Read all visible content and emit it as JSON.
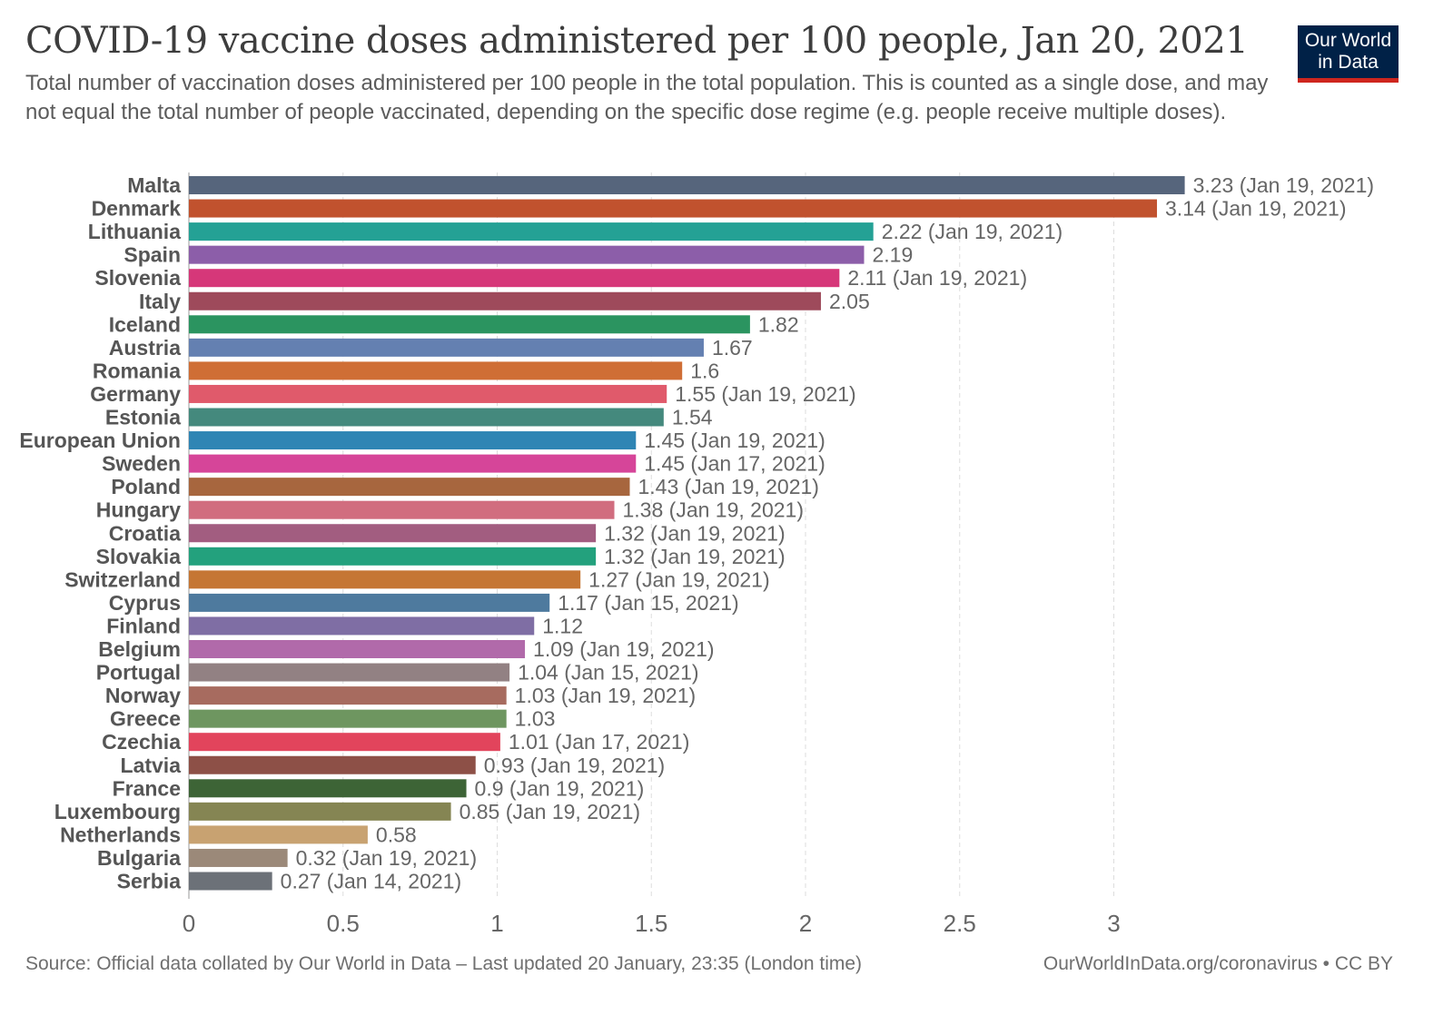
{
  "header": {
    "title": "COVID-19 vaccine doses administered per 100 people, Jan 20, 2021",
    "subtitle": "Total number of vaccination doses administered per 100 people in the total population. This is counted as a single dose, and may not equal the total number of people vaccinated, depending on the specific dose regime (e.g. people receive multiple doses)."
  },
  "logo": {
    "line1": "Our World",
    "line2": "in Data",
    "bg_color": "#002147",
    "accent_color": "#ce261e"
  },
  "footer": {
    "source": "Source: Official data collated by Our World in Data – Last updated 20 January, 23:35 (London time)",
    "license": "OurWorldInData.org/coronavirus • CC BY"
  },
  "chart_data": {
    "type": "bar",
    "orientation": "horizontal",
    "xlim": [
      0,
      3.23
    ],
    "xticks": [
      "0",
      "0.5",
      "1",
      "1.5",
      "2",
      "2.5",
      "3"
    ],
    "xtick_values": [
      0,
      0.5,
      1,
      1.5,
      2,
      2.5,
      3
    ],
    "grid": true,
    "categories": [
      "Malta",
      "Denmark",
      "Lithuania",
      "Spain",
      "Slovenia",
      "Italy",
      "Iceland",
      "Austria",
      "Romania",
      "Germany",
      "Estonia",
      "European Union",
      "Sweden",
      "Poland",
      "Hungary",
      "Croatia",
      "Slovakia",
      "Switzerland",
      "Cyprus",
      "Finland",
      "Belgium",
      "Portugal",
      "Norway",
      "Greece",
      "Czechia",
      "Latvia",
      "France",
      "Luxembourg",
      "Netherlands",
      "Bulgaria",
      "Serbia"
    ],
    "values": [
      3.23,
      3.14,
      2.22,
      2.19,
      2.11,
      2.05,
      1.82,
      1.67,
      1.6,
      1.55,
      1.54,
      1.45,
      1.45,
      1.43,
      1.38,
      1.32,
      1.32,
      1.27,
      1.17,
      1.12,
      1.09,
      1.04,
      1.03,
      1.03,
      1.01,
      0.93,
      0.9,
      0.85,
      0.58,
      0.32,
      0.27
    ],
    "labels": [
      "3.23 (Jan 19, 2021)",
      "3.14 (Jan 19, 2021)",
      "2.22 (Jan 19, 2021)",
      "2.19",
      "2.11 (Jan 19, 2021)",
      "2.05",
      "1.82",
      "1.67",
      "1.6",
      "1.55 (Jan 19, 2021)",
      "1.54",
      "1.45 (Jan 19, 2021)",
      "1.45 (Jan 17, 2021)",
      "1.43 (Jan 19, 2021)",
      "1.38 (Jan 19, 2021)",
      "1.32 (Jan 19, 2021)",
      "1.32 (Jan 19, 2021)",
      "1.27 (Jan 19, 2021)",
      "1.17 (Jan 15, 2021)",
      "1.12",
      "1.09 (Jan 19, 2021)",
      "1.04 (Jan 15, 2021)",
      "1.03 (Jan 19, 2021)",
      "1.03",
      "1.01 (Jan 17, 2021)",
      "0.93 (Jan 19, 2021)",
      "0.9 (Jan 19, 2021)",
      "0.85 (Jan 19, 2021)",
      "0.58",
      "0.32 (Jan 19, 2021)",
      "0.27 (Jan 14, 2021)"
    ],
    "colors": [
      "#56657c",
      "#c1522e",
      "#24a195",
      "#8c5ea9",
      "#d63779",
      "#9e4a5b",
      "#2b9460",
      "#6480b1",
      "#cf6e35",
      "#e05a6b",
      "#44897d",
      "#2f85b4",
      "#d64599",
      "#a7663e",
      "#d16d7f",
      "#a25d80",
      "#23a17d",
      "#c57634",
      "#4e7a9e",
      "#7f6ea4",
      "#b16aaa",
      "#928183",
      "#a76b5f",
      "#6e9660",
      "#e2445c",
      "#8d5047",
      "#3d6436",
      "#858553",
      "#c8a271",
      "#9b8979",
      "#6c7178"
    ]
  }
}
